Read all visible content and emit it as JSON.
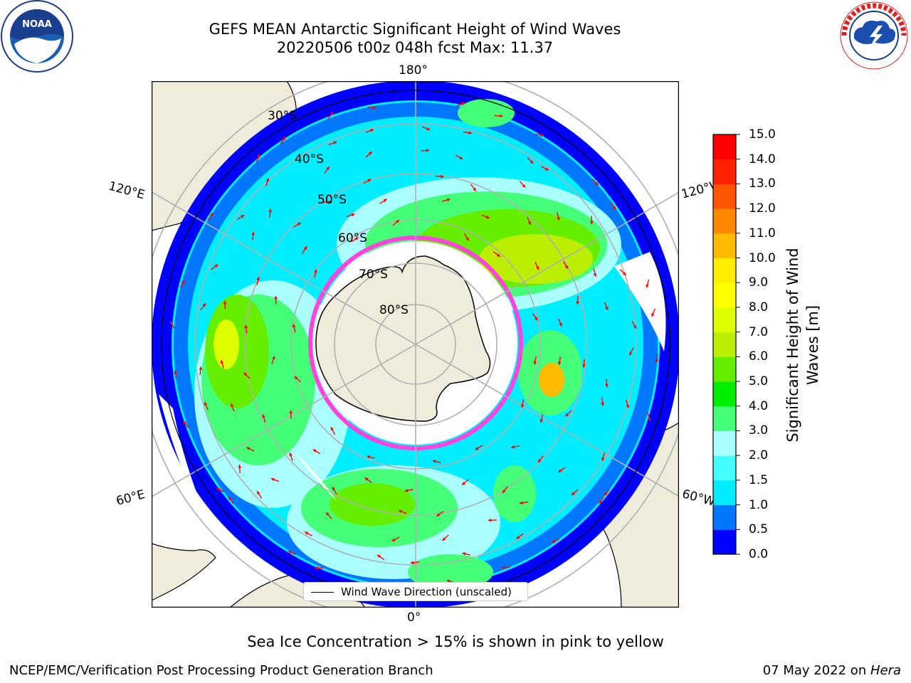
{
  "title": {
    "line1": "GEFS MEAN Antarctic Significant Height of Wind Waves",
    "line2": "20220506 t00z 048h fcst   Max: 11.37"
  },
  "map": {
    "longitude_labels": {
      "top": "180°",
      "bottom": "0°",
      "left_upper": "120°E",
      "left_lower": "60°E",
      "right_upper": "120°W",
      "right_lower": "60°W"
    },
    "latitude_labels": [
      "30°S",
      "40°S",
      "50°S",
      "60°S",
      "70°S",
      "80°S"
    ],
    "legend": "Wind Wave Direction (unscaled)",
    "colors": {
      "land": "#efecdc",
      "arrow": "#ff0000",
      "sea_ice": "#ff44dd",
      "grid": "#b0b0b0"
    }
  },
  "colorbar": {
    "label": "Significant Height of Wind Waves [m]",
    "ticks": [
      "0.0",
      "0.5",
      "1.0",
      "1.5",
      "2.0",
      "3.0",
      "4.0",
      "5.0",
      "6.0",
      "7.0",
      "8.0",
      "9.0",
      "10.0",
      "11.0",
      "12.0",
      "13.0",
      "14.0",
      "15.0"
    ],
    "colors": [
      "#0000ff",
      "#0077ff",
      "#00eeff",
      "#44ffff",
      "#aaffff",
      "#44ff77",
      "#00ee00",
      "#66ee00",
      "#bbee00",
      "#ddff00",
      "#ffff00",
      "#ffee00",
      "#ffbb00",
      "#ff8800",
      "#ff5500",
      "#ff2200",
      "#ff0000"
    ]
  },
  "notes": {
    "sea_ice": "Sea Ice Concentration > 15% is shown in pink to yellow"
  },
  "footer": {
    "left": "NCEP/EMC/Verification Post Processing Product Generation Branch",
    "right_date": "07 May 2022 on ",
    "right_host": "Hera"
  },
  "logos": {
    "left": "noaa-logo",
    "left_text": "NOAA",
    "right": "nws-logo"
  }
}
